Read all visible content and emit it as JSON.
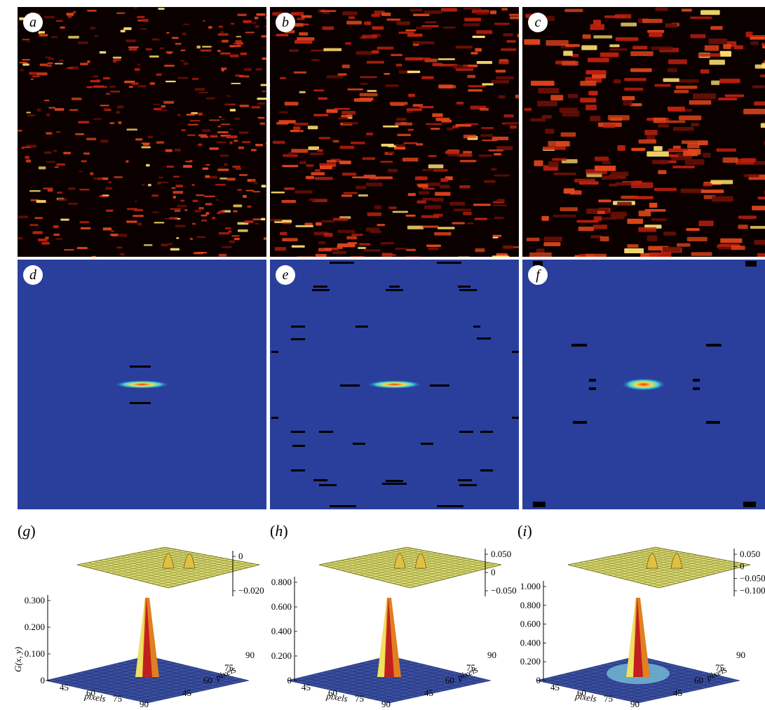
{
  "panels_top": [
    {
      "letter": "a"
    },
    {
      "letter": "b"
    },
    {
      "letter": "c"
    }
  ],
  "panels_mid": [
    {
      "letter": "d"
    },
    {
      "letter": "e"
    },
    {
      "letter": "f"
    }
  ],
  "surfaces": [
    {
      "letter": "g",
      "upper_ticks": [
        "0",
        "−0.020"
      ],
      "lower_ticks": [
        "0.300",
        "0.200",
        "0.100",
        "0"
      ],
      "ylabel": "G(x, y)",
      "x_ticks": [
        "45",
        "60",
        "75",
        "90"
      ],
      "y_ticks": [
        "45",
        "60",
        "75",
        "90"
      ],
      "xlabel": "pixels",
      "ylabel2": "pixels"
    },
    {
      "letter": "h",
      "upper_ticks": [
        "0.050",
        "0",
        "−0.050"
      ],
      "lower_ticks": [
        "0.800",
        "0.600",
        "0.400",
        "0.200",
        "0"
      ],
      "ylabel": "",
      "x_ticks": [
        "45",
        "60",
        "75",
        "90"
      ],
      "y_ticks": [
        "45",
        "60",
        "75",
        "90"
      ],
      "xlabel": "pixels",
      "ylabel2": "pixels"
    },
    {
      "letter": "i",
      "upper_ticks": [
        "0.050",
        "0",
        "−0.050",
        "−0.100"
      ],
      "lower_ticks": [
        "1.000",
        "0.800",
        "0.600",
        "0.400",
        "0.200",
        "0"
      ],
      "ylabel": "",
      "x_ticks": [
        "45",
        "60",
        "75",
        "90"
      ],
      "y_ticks": [
        "45",
        "60",
        "75",
        "90"
      ],
      "xlabel": "pixels",
      "ylabel2": "pixels"
    }
  ],
  "colors": {
    "heat_bg": "#0b0000",
    "heat_mid": "#c0200e",
    "heat_hot": "#ffe070",
    "corr_bg": "#2a3f9c",
    "surface_yellow": "#d8d870",
    "surface_blue": "#3a4f9e"
  }
}
